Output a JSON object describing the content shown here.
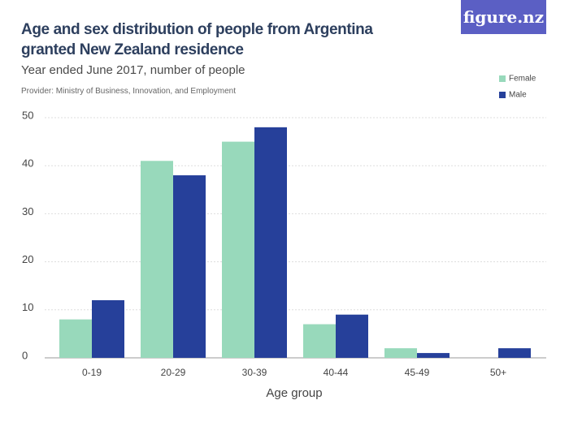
{
  "logo": "figure.nz",
  "chart_data": {
    "type": "bar",
    "title": "Age and sex distribution of people from Argentina granted New Zealand residence",
    "subtitle": "Year ended June 2017, number of people",
    "source": "Provider: Ministry of Business, Innovation, and Employment",
    "x_label": "Age group",
    "categories": [
      "0-19",
      "20-29",
      "30-39",
      "40-44",
      "45-49",
      "50+"
    ],
    "series": [
      {
        "name": "Female",
        "color": "#98d9bb",
        "values": [
          8,
          41,
          45,
          7,
          2,
          0
        ]
      },
      {
        "name": "Male",
        "color": "#26409a",
        "values": [
          12,
          38,
          48,
          9,
          1,
          2
        ]
      }
    ],
    "ylim": [
      0,
      50
    ],
    "yticks": [
      0,
      10,
      20,
      30,
      40,
      50
    ],
    "grid": true,
    "legend": "top-right"
  }
}
